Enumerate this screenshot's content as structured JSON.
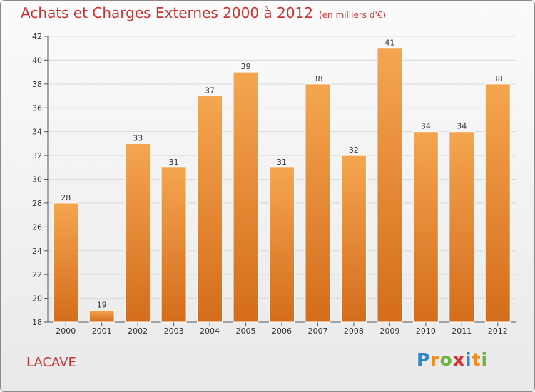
{
  "title": "Achats et Charges Externes 2000 à 2012",
  "subtitle": "(en milliers d'€)",
  "place": "LACAVE",
  "logo": "Proxiti",
  "colors": {
    "title": "#cc3333",
    "bar_light": "#f5a550",
    "bar_dark": "#d46d1b",
    "grid": "#d9d9d9"
  },
  "chart_data": {
    "type": "bar",
    "categories": [
      "2000",
      "2001",
      "2002",
      "2003",
      "2004",
      "2005",
      "2006",
      "2007",
      "2008",
      "2009",
      "2010",
      "2011",
      "2012"
    ],
    "values": [
      28,
      19,
      33,
      31,
      37,
      39,
      31,
      38,
      32,
      41,
      34,
      34,
      38
    ],
    "ylim": [
      18,
      42
    ],
    "yticks": [
      18,
      20,
      22,
      24,
      26,
      28,
      30,
      32,
      34,
      36,
      38,
      40,
      42
    ],
    "grid": true,
    "data_labels": true
  }
}
